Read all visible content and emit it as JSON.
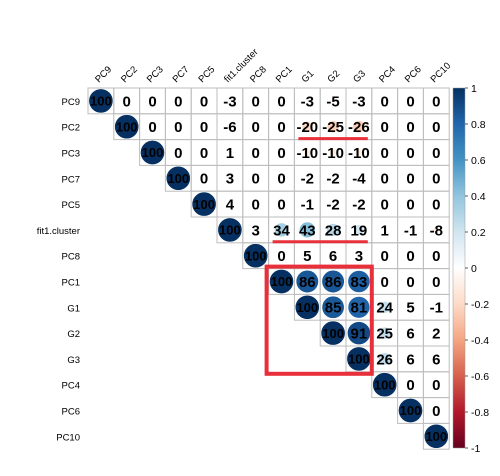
{
  "chart_data": {
    "type": "heatmap",
    "variables": [
      "PC9",
      "PC2",
      "PC3",
      "PC7",
      "PC5",
      "fit1.cluster",
      "PC8",
      "PC1",
      "G1",
      "G2",
      "G3",
      "PC4",
      "PC6",
      "PC10"
    ],
    "matrix": [
      [
        100,
        0,
        0,
        0,
        0,
        -3,
        0,
        0,
        -3,
        -5,
        -3,
        0,
        0,
        0
      ],
      [
        null,
        100,
        0,
        0,
        0,
        -6,
        0,
        0,
        -20,
        -25,
        -26,
        0,
        0,
        0
      ],
      [
        null,
        null,
        100,
        0,
        0,
        1,
        0,
        0,
        -10,
        -10,
        -10,
        0,
        0,
        0
      ],
      [
        null,
        null,
        null,
        100,
        0,
        3,
        0,
        0,
        -2,
        -2,
        -4,
        0,
        0,
        0
      ],
      [
        null,
        null,
        null,
        null,
        100,
        4,
        0,
        0,
        -1,
        -2,
        -2,
        0,
        0,
        0
      ],
      [
        null,
        null,
        null,
        null,
        null,
        100,
        3,
        34,
        43,
        28,
        19,
        1,
        -1,
        -8
      ],
      [
        null,
        null,
        null,
        null,
        null,
        null,
        100,
        0,
        5,
        6,
        3,
        0,
        0,
        0
      ],
      [
        null,
        null,
        null,
        null,
        null,
        null,
        null,
        100,
        86,
        86,
        83,
        0,
        0,
        0
      ],
      [
        null,
        null,
        null,
        null,
        null,
        null,
        null,
        null,
        100,
        85,
        81,
        24,
        5,
        -1
      ],
      [
        null,
        null,
        null,
        null,
        null,
        null,
        null,
        null,
        null,
        100,
        91,
        25,
        6,
        2
      ],
      [
        null,
        null,
        null,
        null,
        null,
        null,
        null,
        null,
        null,
        null,
        100,
        26,
        6,
        6
      ],
      [
        null,
        null,
        null,
        null,
        null,
        null,
        null,
        null,
        null,
        null,
        null,
        100,
        0,
        0
      ],
      [
        null,
        null,
        null,
        null,
        null,
        null,
        null,
        null,
        null,
        null,
        null,
        null,
        100,
        0
      ],
      [
        null,
        null,
        null,
        null,
        null,
        null,
        null,
        null,
        null,
        null,
        null,
        null,
        null,
        100
      ]
    ],
    "legend_ticks": [
      "1",
      "0.8",
      "0.6",
      "0.4",
      "0.2",
      "0",
      "-0.2",
      "-0.4",
      "-0.6",
      "-0.8",
      "-1"
    ],
    "legend_range": [
      -1,
      1
    ],
    "legend_placement": "right",
    "colors": {
      "negative": "#67001f",
      "neutral": "#ffffff",
      "positive": "#053061",
      "highlight": "#e8303a",
      "grid": "#bdbdbd"
    },
    "highlights": [
      {
        "type": "underline",
        "row": 1,
        "col_from": 8,
        "col_to": 10
      },
      {
        "type": "underline",
        "row": 5,
        "col_from": 7,
        "col_to": 10
      },
      {
        "type": "box",
        "row_from": 7,
        "row_to": 10,
        "col_from": 7,
        "col_to": 10
      }
    ]
  }
}
